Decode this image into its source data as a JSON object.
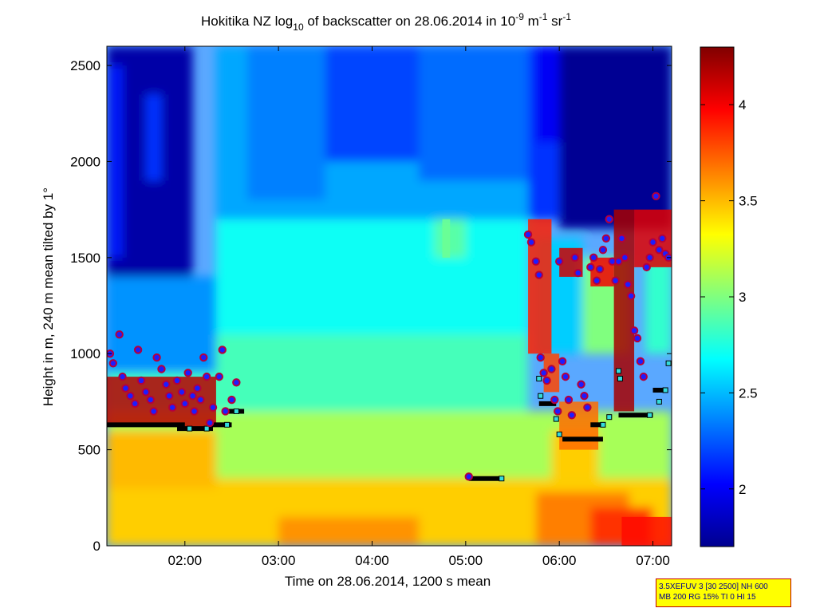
{
  "chart_data": {
    "type": "heatmap",
    "title": {
      "prefix": "Hokitika NZ log",
      "log_base": "10",
      "middle": " of backscatter on 28.06.2014 in 10",
      "unit_exp1": "-9",
      "unit_mid": " m",
      "unit_exp2": "-1",
      "unit_end": " sr",
      "unit_exp3": "-1"
    },
    "xlabel": "Time on 28.06.2014, 1200 s mean",
    "ylabel": "Height in m, 240 m mean tilted by 1°",
    "xlim": [
      "01:10",
      "07:12"
    ],
    "ylim": [
      0,
      2600
    ],
    "x_ticks": [
      "02:00",
      "03:00",
      "04:00",
      "05:00",
      "06:00",
      "07:00"
    ],
    "y_ticks": [
      0,
      500,
      1000,
      1500,
      2000,
      2500
    ],
    "colorbar": {
      "colormap": "jet",
      "range": [
        1.7,
        4.3
      ],
      "ticks": [
        2,
        2.5,
        3,
        3.5,
        4
      ]
    },
    "annotations": {
      "cloud_base_points": [
        [
          "01:12",
          1000
        ],
        [
          "01:14",
          950
        ],
        [
          "01:18",
          1100
        ],
        [
          "01:20",
          880
        ],
        [
          "01:22",
          820
        ],
        [
          "01:25",
          780
        ],
        [
          "01:28",
          740
        ],
        [
          "01:30",
          1020
        ],
        [
          "01:32",
          860
        ],
        [
          "01:35",
          800
        ],
        [
          "01:38",
          760
        ],
        [
          "01:40",
          700
        ],
        [
          "01:42",
          980
        ],
        [
          "01:45",
          920
        ],
        [
          "01:48",
          840
        ],
        [
          "01:50",
          780
        ],
        [
          "01:52",
          720
        ],
        [
          "01:55",
          860
        ],
        [
          "01:58",
          800
        ],
        [
          "02:00",
          740
        ],
        [
          "02:02",
          900
        ],
        [
          "02:05",
          780
        ],
        [
          "02:06",
          700
        ],
        [
          "02:08",
          820
        ],
        [
          "02:10",
          760
        ],
        [
          "02:12",
          980
        ],
        [
          "02:14",
          880
        ],
        [
          "02:16",
          640
        ],
        [
          "02:18",
          720
        ],
        [
          "02:22",
          880
        ],
        [
          "02:24",
          1020
        ],
        [
          "02:26",
          700
        ],
        [
          "02:30",
          760
        ],
        [
          "02:33",
          850
        ],
        [
          "05:02",
          360
        ],
        [
          "05:40",
          1620
        ],
        [
          "05:42",
          1580
        ],
        [
          "05:45",
          1480
        ],
        [
          "05:47",
          1410
        ],
        [
          "05:48",
          980
        ],
        [
          "05:50",
          900
        ],
        [
          "05:52",
          860
        ],
        [
          "05:55",
          920
        ],
        [
          "05:57",
          760
        ],
        [
          "05:59",
          700
        ],
        [
          "06:00",
          1480
        ],
        [
          "06:02",
          960
        ],
        [
          "06:04",
          880
        ],
        [
          "06:06",
          760
        ],
        [
          "06:08",
          680
        ],
        [
          "06:10",
          1500
        ],
        [
          "06:12",
          1420
        ],
        [
          "06:14",
          840
        ],
        [
          "06:16",
          780
        ],
        [
          "06:18",
          720
        ],
        [
          "06:20",
          1450
        ],
        [
          "06:22",
          1500
        ],
        [
          "06:24",
          1380
        ],
        [
          "06:26",
          1440
        ],
        [
          "06:28",
          1540
        ],
        [
          "06:30",
          1600
        ],
        [
          "06:32",
          1700
        ],
        [
          "06:34",
          1480
        ],
        [
          "06:36",
          1380
        ],
        [
          "06:38",
          1480
        ],
        [
          "06:40",
          1600
        ],
        [
          "06:42",
          1500
        ],
        [
          "06:44",
          1360
        ],
        [
          "06:46",
          1300
        ],
        [
          "06:48",
          1120
        ],
        [
          "06:50",
          1080
        ],
        [
          "06:52",
          960
        ],
        [
          "06:54",
          880
        ],
        [
          "06:56",
          1450
        ],
        [
          "06:58",
          1500
        ],
        [
          "07:00",
          1580
        ],
        [
          "07:02",
          1820
        ],
        [
          "07:04",
          1540
        ],
        [
          "07:06",
          1600
        ],
        [
          "07:08",
          1520
        ],
        [
          "07:10",
          1500
        ]
      ],
      "cloud_base_segments": [
        [
          [
            "01:10",
            630
          ],
          [
            "02:00",
            630
          ]
        ],
        [
          [
            "01:55",
            610
          ],
          [
            "02:18",
            610
          ]
        ],
        [
          [
            "02:15",
            630
          ],
          [
            "02:30",
            630
          ]
        ],
        [
          [
            "02:28",
            700
          ],
          [
            "02:38",
            700
          ]
        ],
        [
          [
            "05:02",
            350
          ],
          [
            "05:23",
            350
          ]
        ],
        [
          [
            "05:47",
            740
          ],
          [
            "05:58",
            740
          ]
        ],
        [
          [
            "06:02",
            555
          ],
          [
            "06:28",
            555
          ]
        ],
        [
          [
            "06:20",
            630
          ],
          [
            "06:28",
            630
          ]
        ],
        [
          [
            "06:38",
            680
          ],
          [
            "07:00",
            680
          ]
        ],
        [
          [
            "07:00",
            810
          ],
          [
            "07:08",
            810
          ]
        ]
      ],
      "aerosol_layer_squares": [
        [
          "02:03",
          610
        ],
        [
          "02:14",
          610
        ],
        [
          "02:27",
          630
        ],
        [
          "02:33",
          700
        ],
        [
          "05:23",
          350
        ],
        [
          "05:47",
          870
        ],
        [
          "05:48",
          780
        ],
        [
          "05:58",
          660
        ],
        [
          "06:00",
          580
        ],
        [
          "06:28",
          630
        ],
        [
          "06:32",
          670
        ],
        [
          "06:38",
          910
        ],
        [
          "06:39",
          870
        ],
        [
          "06:58",
          680
        ],
        [
          "07:04",
          750
        ],
        [
          "07:08",
          810
        ],
        [
          "07:10",
          950
        ]
      ]
    }
  },
  "info_box": {
    "line1": "3.5XEFUV 3 [30 2500] NH 600",
    "line2": "MB 200 RG 15% TI 0 HI 15"
  },
  "colors": {
    "cloud_point_fill": "#1c1cff",
    "cloud_point_edge": "#b5003c",
    "segment": "#000000",
    "square_fill": "#33dcdc",
    "info_bg": "#ffff00",
    "info_border": "#c00000",
    "info_text": "#00008b"
  }
}
